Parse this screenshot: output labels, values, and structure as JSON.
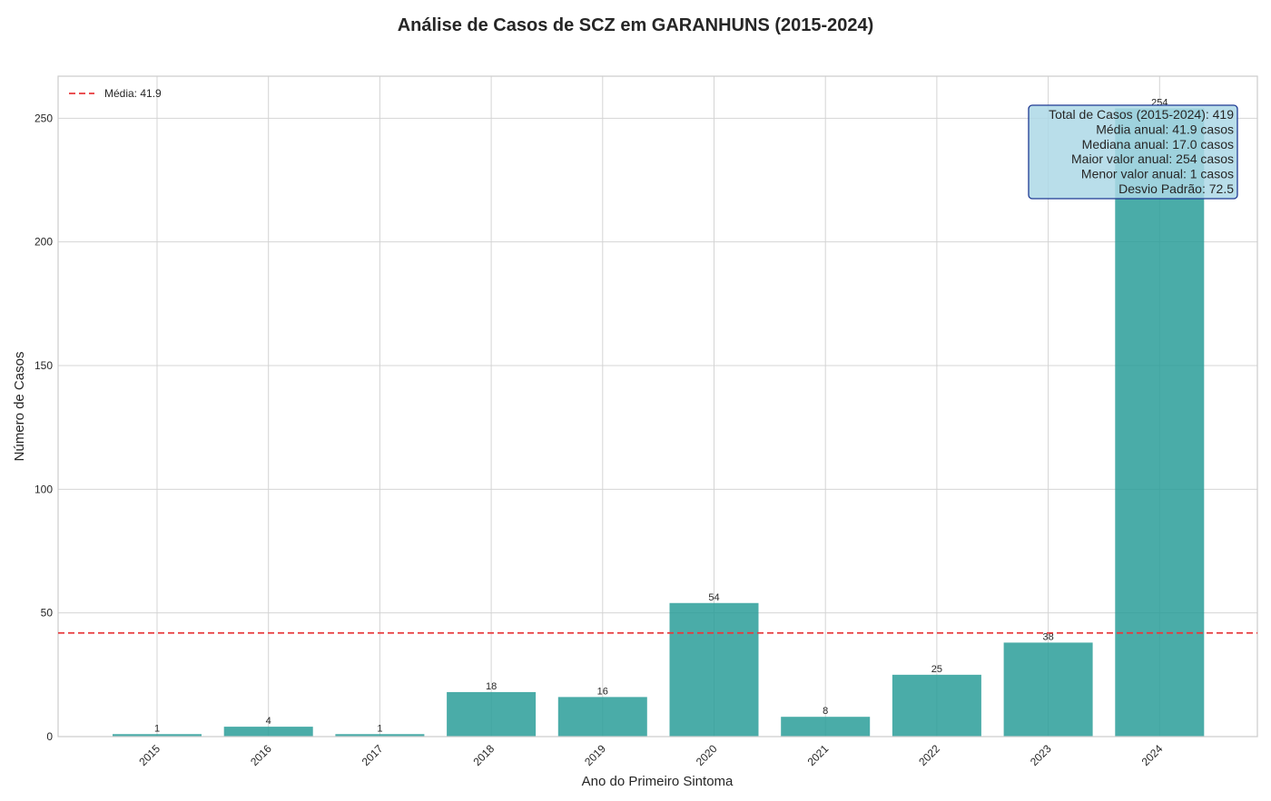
{
  "chart_data": {
    "type": "bar",
    "title": "Análise de Casos de SCZ em GARANHUNS (2015-2024)",
    "xlabel": "Ano do Primeiro Sintoma",
    "ylabel": "Número de Casos",
    "categories": [
      "2015",
      "2016",
      "2017",
      "2018",
      "2019",
      "2020",
      "2021",
      "2022",
      "2023",
      "2024"
    ],
    "values": [
      1,
      4,
      1,
      18,
      16,
      54,
      8,
      25,
      38,
      254
    ],
    "ylim": [
      0,
      267
    ],
    "yticks": [
      0,
      50,
      100,
      150,
      200,
      250
    ],
    "grid": true,
    "mean_line": {
      "value": 41.9,
      "label": "Média: 41.9",
      "color": "#e8383b"
    },
    "legend_position": "top-left",
    "bar_color": "#2a9d99",
    "stats_box": {
      "lines": [
        "Total de Casos (2015-2024): 419",
        "Média anual: 41.9 casos",
        "Mediana anual: 17.0 casos",
        "Maior valor anual: 254 casos",
        "Menor valor anual: 1 casos",
        "Desvio Padrão: 72.5"
      ],
      "background": "#add8e6",
      "border": "#1f3a93",
      "position": "top-right"
    }
  }
}
